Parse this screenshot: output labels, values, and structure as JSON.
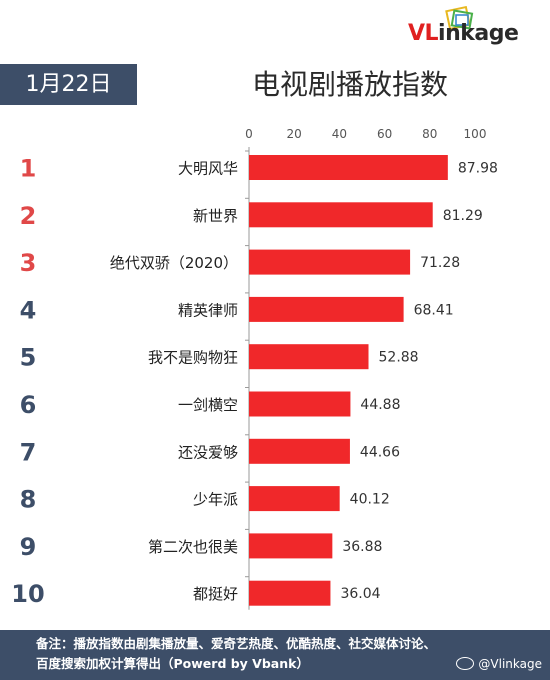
{
  "brand": {
    "logo_vl": "VL",
    "logo_rest": "inkage",
    "colors": {
      "accent_red": "#e02020",
      "navy": "#3d4e68",
      "bar": "#f0282a",
      "rank_top": "#e04848",
      "rank_other": "#3d4e68"
    }
  },
  "header": {
    "date": "1月22日",
    "title": "电视剧播放指数"
  },
  "chart_data": {
    "type": "bar",
    "orientation": "horizontal",
    "categories": [
      "大明风华",
      "新世界",
      "绝代双骄（2020）",
      "精英律师",
      "我不是购物狂",
      "一剑横空",
      "还没爱够",
      "少年派",
      "第二次也很美",
      "都挺好"
    ],
    "ranks": [
      "1",
      "2",
      "3",
      "4",
      "5",
      "6",
      "7",
      "8",
      "9",
      "10"
    ],
    "values": [
      87.98,
      81.29,
      71.28,
      68.41,
      52.88,
      44.88,
      44.66,
      40.12,
      36.88,
      36.04
    ],
    "value_labels": [
      "87.98",
      "81.29",
      "71.28",
      "68.41",
      "52.88",
      "44.88",
      "44.66",
      "40.12",
      "36.88",
      "36.04"
    ],
    "xticks": [
      "0",
      "20",
      "40",
      "60",
      "80",
      "100"
    ],
    "xlim": [
      0,
      100
    ],
    "axis_position": "top",
    "grid": false,
    "title": "电视剧播放指数",
    "bar_color": "#f0282a"
  },
  "footer": {
    "line1": "备注：播放指数由剧集播放量、爱奇艺热度、优酷热度、社交媒体讨论、",
    "line2": "百度搜索加权计算得出（Powerd by Vbank）",
    "weibo": "@Vlinkage"
  }
}
